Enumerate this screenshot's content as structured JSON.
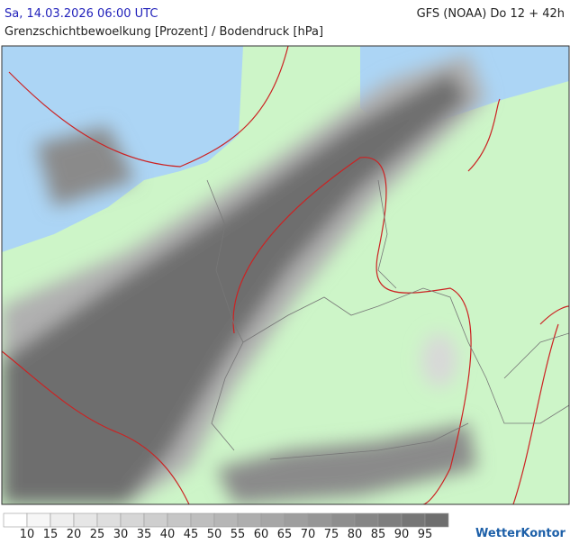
{
  "header": {
    "datetime": "Sa, 14.03.2026 06:00 UTC",
    "model": "GFS (NOAA) Do 12 + 42h",
    "subtitle": "Grenzschichtbewoelkung [Prozent] / Bodendruck [hPa]"
  },
  "legend": {
    "labels": [
      10,
      15,
      20,
      25,
      30,
      35,
      40,
      45,
      50,
      55,
      60,
      65,
      70,
      75,
      80,
      85,
      90,
      95
    ],
    "colors": [
      "#ffffff",
      "#f6f6f6",
      "#eeeeee",
      "#e6e6e6",
      "#dedede",
      "#d6d6d6",
      "#cecece",
      "#c6c6c6",
      "#bebebe",
      "#b6b6b6",
      "#aeaeae",
      "#a6a6a6",
      "#9e9e9e",
      "#969696",
      "#8e8e8e",
      "#868686",
      "#7e7e7e",
      "#767676",
      "#6e6e6e"
    ]
  },
  "logo": "WetterKontor"
}
